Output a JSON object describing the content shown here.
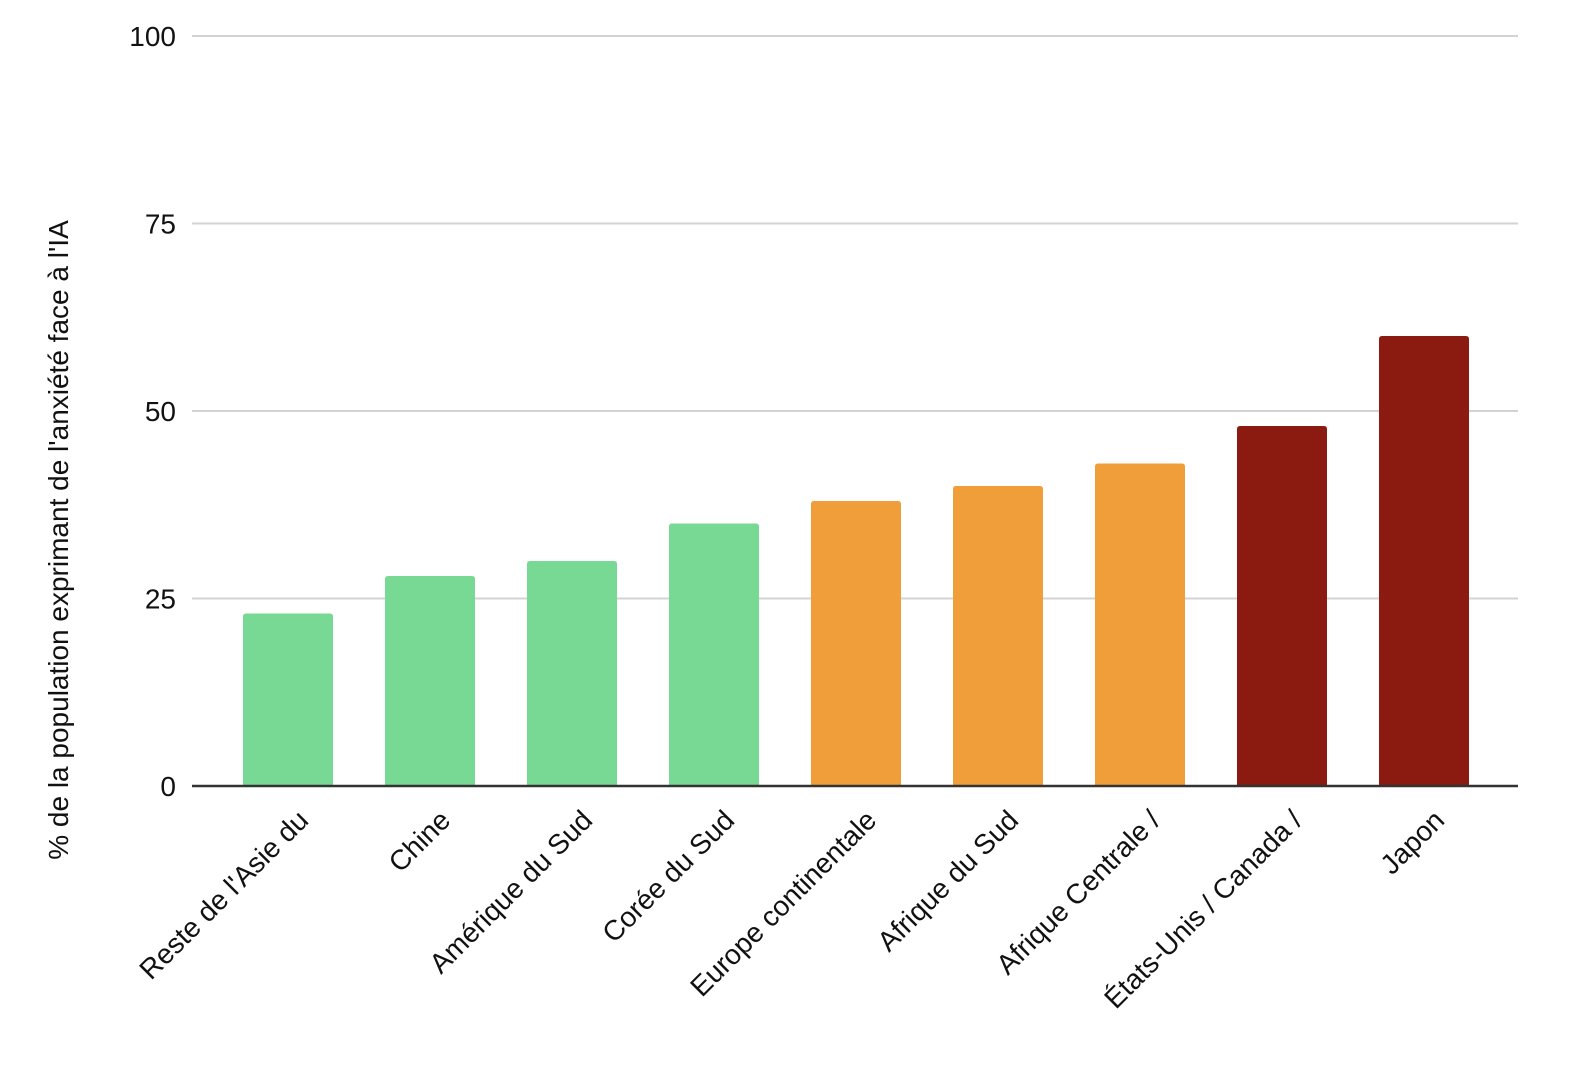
{
  "chart_data": {
    "type": "bar",
    "title": "",
    "xlabel": "",
    "ylabel": "% de la population exprimant de l'anxiété face à l'IA",
    "ylim": [
      0,
      100
    ],
    "yticks": [
      0,
      25,
      50,
      75,
      100
    ],
    "grid": true,
    "categories": [
      "Reste de l'Asie du",
      "Chine",
      "Amérique du Sud",
      "Corée du Sud",
      "Europe continentale",
      "Afrique du Sud",
      "Afrique Centrale /",
      "États-Unis / Canada /",
      "Japon"
    ],
    "values": [
      23,
      28,
      30,
      35,
      38,
      40,
      43,
      48,
      60
    ],
    "bar_colors": [
      "#77d994",
      "#77d994",
      "#77d994",
      "#77d994",
      "#f09e3a",
      "#f09e3a",
      "#f09e3a",
      "#8b1a11",
      "#8b1a11"
    ],
    "grid_color": "#d3d3d3",
    "axis_color": "#333333"
  }
}
